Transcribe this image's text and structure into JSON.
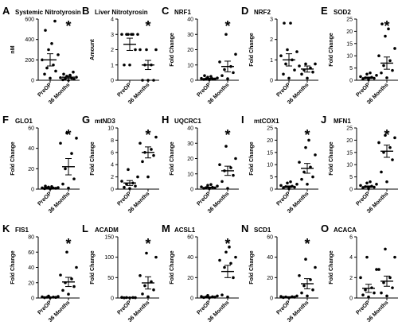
{
  "chart_data": [
    {
      "letter": "A",
      "title": "Systemic Nitrotyrosin",
      "type": "scatter",
      "ylabel": "nM",
      "yticks": [
        "0",
        "200",
        "400",
        "600"
      ],
      "ylim": [
        0,
        600
      ],
      "categories": [
        "PreOP",
        "36 Months"
      ],
      "significance": "*",
      "series": [
        {
          "values": [
            20,
            60,
            90,
            120,
            150,
            200,
            250,
            300,
            360,
            490,
            580
          ],
          "mean": 200,
          "sem": 60
        },
        {
          "values": [
            0,
            5,
            10,
            15,
            20,
            25,
            30,
            40,
            50,
            60,
            80
          ],
          "mean": 30,
          "sem": 10
        }
      ]
    },
    {
      "letter": "B",
      "title": "Liver Nitrotyrosin",
      "type": "scatter",
      "ylabel": "Amount",
      "yticks": [
        "0",
        "1",
        "2",
        "3",
        "4"
      ],
      "ylim": [
        0,
        4
      ],
      "categories": [
        "PreOP",
        "36 Months"
      ],
      "significance": "*",
      "series": [
        {
          "values": [
            1,
            1,
            2,
            3,
            3,
            3,
            3,
            3,
            3
          ],
          "mean": 2.35,
          "sem": 0.4
        },
        {
          "values": [
            0,
            0,
            0,
            1,
            1,
            2,
            2,
            2
          ],
          "mean": 1.0,
          "sem": 0.3
        }
      ]
    },
    {
      "letter": "C",
      "title": "NRF1",
      "type": "scatter",
      "ylabel": "Fold Change",
      "yticks": [
        "0",
        "10",
        "20",
        "30",
        "40"
      ],
      "ylim": [
        0,
        40
      ],
      "categories": [
        "PreOP",
        "36 Months"
      ],
      "significance": "*",
      "series": [
        {
          "values": [
            0.3,
            0.5,
            0.8,
            1,
            1,
            1.2,
            1.5,
            2,
            2.5,
            3
          ],
          "mean": 1.0,
          "sem": 0.3
        },
        {
          "values": [
            1,
            3,
            5,
            7,
            9,
            12,
            17,
            30
          ],
          "mean": 9.0,
          "sem": 3.5
        }
      ]
    },
    {
      "letter": "D",
      "title": "NRF2",
      "type": "scatter",
      "ylabel": "Fold Change",
      "yticks": [
        "0",
        "1",
        "2",
        "3"
      ],
      "ylim": [
        0,
        3
      ],
      "categories": [
        "PreOP",
        "36 Months"
      ],
      "significance": "",
      "series": [
        {
          "values": [
            0.1,
            0.3,
            0.5,
            0.8,
            1.0,
            1.2,
            1.4,
            1.5,
            2.8,
            2.8
          ],
          "mean": 1.0,
          "sem": 0.3
        },
        {
          "values": [
            0.1,
            0.3,
            0.4,
            0.5,
            0.6,
            0.7,
            0.8,
            0.8
          ],
          "mean": 0.55,
          "sem": 0.15
        }
      ]
    },
    {
      "letter": "E",
      "title": "SOD2",
      "type": "scatter",
      "ylabel": "Fold Change",
      "yticks": [
        "0",
        "5",
        "10",
        "15",
        "20",
        "25"
      ],
      "ylim": [
        0,
        25
      ],
      "categories": [
        "PreOP",
        "36 Months"
      ],
      "significance": "*",
      "series": [
        {
          "values": [
            0.2,
            0.5,
            0.8,
            1,
            1.2,
            1.5,
            2,
            2.5,
            3
          ],
          "mean": 1.0,
          "sem": 0.3
        },
        {
          "values": [
            1,
            3,
            4,
            6,
            8,
            10,
            13,
            18,
            21,
            23
          ],
          "mean": 7.0,
          "sem": 2.5
        }
      ]
    },
    {
      "letter": "F",
      "title": "GLO1",
      "type": "scatter",
      "ylabel": "Fold Change",
      "yticks": [
        "0",
        "20",
        "40",
        "60"
      ],
      "ylim": [
        0,
        60
      ],
      "categories": [
        "PreOP",
        "36 Months"
      ],
      "significance": "*",
      "series": [
        {
          "values": [
            0.3,
            0.5,
            0.8,
            1,
            1,
            1.2,
            1.5,
            2,
            2.5,
            3
          ],
          "mean": 1.0,
          "sem": 0.4
        },
        {
          "values": [
            1,
            5,
            10,
            20,
            35,
            45,
            50,
            55
          ],
          "mean": 22,
          "sem": 8
        }
      ]
    },
    {
      "letter": "G",
      "title": "mtND3",
      "type": "scatter",
      "ylabel": "Fold Change",
      "yticks": [
        "0",
        "2",
        "4",
        "6",
        "8",
        "10"
      ],
      "ylim": [
        0,
        10
      ],
      "categories": [
        "PreOP",
        "36 Months"
      ],
      "significance": "*",
      "series": [
        {
          "values": [
            0.1,
            0.3,
            0.5,
            0.8,
            1,
            1.3,
            2,
            3.2
          ],
          "mean": 1.0,
          "sem": 0.4
        },
        {
          "values": [
            2,
            4.5,
            5.5,
            6,
            6.5,
            7.5,
            8.5
          ],
          "mean": 6.0,
          "sem": 0.9
        }
      ]
    },
    {
      "letter": "H",
      "title": "UQCRC1",
      "type": "scatter",
      "ylabel": "Fold Change",
      "yticks": [
        "0",
        "10",
        "20",
        "30",
        "40"
      ],
      "ylim": [
        0,
        40
      ],
      "categories": [
        "PreOP",
        "36 Months"
      ],
      "significance": "*",
      "series": [
        {
          "values": [
            0.3,
            0.5,
            0.8,
            1,
            1.2,
            1.5,
            2,
            2.5,
            3
          ],
          "mean": 1.0,
          "sem": 0.3
        },
        {
          "values": [
            0.5,
            5,
            9,
            12,
            14,
            16,
            20,
            28
          ],
          "mean": 12,
          "sem": 3
        }
      ]
    },
    {
      "letter": "I",
      "title": "mtCOX1",
      "type": "scatter",
      "ylabel": "Fold Change",
      "yticks": [
        "0",
        "5",
        "10",
        "15",
        "20",
        "25"
      ],
      "ylim": [
        0,
        25
      ],
      "categories": [
        "PreOP",
        "36 Months"
      ],
      "significance": "*",
      "series": [
        {
          "values": [
            0.2,
            0.5,
            0.8,
            1,
            1.2,
            1.5,
            2,
            2.5,
            3
          ],
          "mean": 1.0,
          "sem": 0.3
        },
        {
          "values": [
            2,
            4,
            5,
            7,
            9,
            11,
            14,
            17,
            20
          ],
          "mean": 8.5,
          "sem": 2
        }
      ]
    },
    {
      "letter": "J",
      "title": "MFN1",
      "type": "scatter",
      "ylabel": "Fold Change",
      "yticks": [
        "0",
        "5",
        "10",
        "15",
        "20",
        "25"
      ],
      "ylim": [
        0,
        25
      ],
      "categories": [
        "PreOP",
        "36 Months"
      ],
      "significance": "*",
      "series": [
        {
          "values": [
            0.2,
            0.5,
            0.8,
            1,
            1.2,
            1.5,
            2,
            2.5,
            3
          ],
          "mean": 1.0,
          "sem": 0.3
        },
        {
          "values": [
            3,
            7,
            12,
            15,
            17,
            19,
            21,
            22
          ],
          "mean": 15.5,
          "sem": 2.5
        }
      ]
    },
    {
      "letter": "K",
      "title": "FIS1",
      "type": "scatter",
      "ylabel": "Fold Change",
      "yticks": [
        "0",
        "20",
        "40",
        "60",
        "80"
      ],
      "ylim": [
        0,
        80
      ],
      "categories": [
        "PreOP",
        "36 Months"
      ],
      "significance": "*",
      "series": [
        {
          "values": [
            0.3,
            0.5,
            0.8,
            1,
            1.2,
            1.5,
            2,
            2.5
          ],
          "mean": 1.0,
          "sem": 0.3
        },
        {
          "values": [
            5,
            10,
            15,
            20,
            25,
            30,
            40,
            60
          ],
          "mean": 21,
          "sem": 6
        }
      ]
    },
    {
      "letter": "L",
      "title": "ACADM",
      "type": "scatter",
      "ylabel": "Fold Change",
      "yticks": [
        "0",
        "50",
        "100",
        "150"
      ],
      "ylim": [
        0,
        150
      ],
      "categories": [
        "PreOP",
        "36 Months"
      ],
      "significance": "*",
      "series": [
        {
          "values": [
            0.3,
            0.5,
            0.8,
            1,
            1.2,
            1.5
          ],
          "mean": 1.0,
          "sem": 0.3
        },
        {
          "values": [
            3,
            10,
            20,
            30,
            40,
            55,
            100,
            110
          ],
          "mean": 37,
          "sem": 15
        }
      ]
    },
    {
      "letter": "M",
      "title": "ACSL1",
      "type": "scatter",
      "ylabel": "Fold Change",
      "yticks": [
        "0",
        "20",
        "40",
        "60"
      ],
      "ylim": [
        0,
        60
      ],
      "categories": [
        "PreOP",
        "36 Months"
      ],
      "significance": "*",
      "series": [
        {
          "values": [
            0.3,
            0.5,
            0.8,
            1,
            1.2,
            1.5,
            2,
            2.5
          ],
          "mean": 1.0,
          "sem": 0.3
        },
        {
          "values": [
            1,
            3,
            20,
            30,
            34,
            37,
            40,
            45,
            50
          ],
          "mean": 26,
          "sem": 6
        }
      ]
    },
    {
      "letter": "N",
      "title": "SCD1",
      "type": "scatter",
      "ylabel": "Fold Change",
      "yticks": [
        "0",
        "20",
        "40",
        "60"
      ],
      "ylim": [
        0,
        60
      ],
      "categories": [
        "PreOP",
        "36 Months"
      ],
      "significance": "*",
      "series": [
        {
          "values": [
            0.3,
            0.5,
            0.8,
            1,
            1.2,
            1.5,
            2
          ],
          "mean": 1.0,
          "sem": 0.3
        },
        {
          "values": [
            2,
            5,
            8,
            12,
            18,
            22,
            30,
            38
          ],
          "mean": 14,
          "sem": 5
        }
      ]
    },
    {
      "letter": "O",
      "title": "ACACA",
      "type": "scatter",
      "ylabel": "Fold Change",
      "yticks": [
        "0",
        "2",
        "4",
        "6"
      ],
      "ylim": [
        0,
        6
      ],
      "categories": [
        "PreOP",
        "36 Months"
      ],
      "significance": "",
      "series": [
        {
          "values": [
            0.1,
            0.3,
            0.5,
            0.8,
            1.0,
            2.0,
            2.8,
            4.0
          ],
          "mean": 0.95,
          "sem": 0.4
        },
        {
          "values": [
            0.2,
            0.5,
            1.0,
            1.5,
            2.0,
            2.8,
            4.0,
            4.8
          ],
          "mean": 1.65,
          "sem": 0.5
        }
      ]
    }
  ]
}
